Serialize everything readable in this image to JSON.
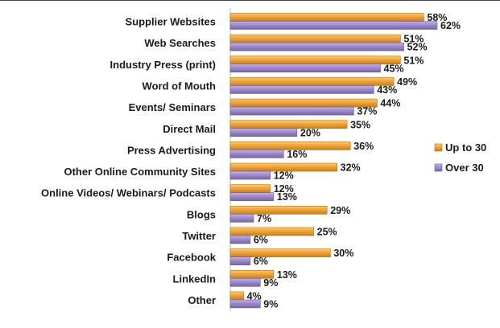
{
  "chart_data": {
    "type": "bar",
    "orientation": "horizontal",
    "categories": [
      "Supplier Websites",
      "Web Searches",
      "Industry Press (print)",
      "Word of Mouth",
      "Events/ Seminars",
      "Direct Mail",
      "Press Advertising",
      "Other Online Community Sites",
      "Online Videos/ Webinars/ Podcasts",
      "Blogs",
      "Twitter",
      "Facebook",
      "LinkedIn",
      "Other"
    ],
    "series": [
      {
        "name": "Up to 30",
        "color": "#F0A030",
        "values": [
          58,
          51,
          51,
          49,
          44,
          35,
          36,
          32,
          12,
          29,
          25,
          30,
          13,
          4
        ]
      },
      {
        "name": "Over 30",
        "color": "#9B86CC",
        "values": [
          62,
          52,
          45,
          43,
          37,
          20,
          16,
          12,
          13,
          7,
          6,
          6,
          9,
          9
        ]
      }
    ],
    "value_suffix": "%",
    "xlim": [
      0,
      62
    ],
    "grid": false,
    "legend_position": "right"
  }
}
